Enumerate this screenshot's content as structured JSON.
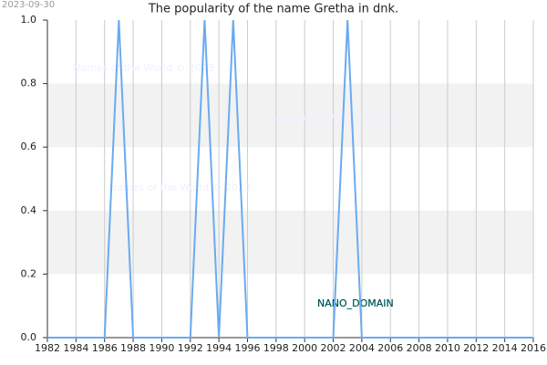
{
  "chart_data": {
    "type": "line",
    "title": "The popularity of the name Gretha in dnk.",
    "date_stamp": "2023-09-30",
    "watermarks": [
      "Names of the World © 2023",
      "Names of the World © 2023",
      "Names of the World © 2023"
    ],
    "domain_label": "NANO_DOMAIN",
    "x": [
      1982,
      1983,
      1984,
      1985,
      1986,
      1987,
      1988,
      1989,
      1990,
      1991,
      1992,
      1993,
      1994,
      1995,
      1996,
      1997,
      1998,
      1999,
      2000,
      2001,
      2002,
      2003,
      2004,
      2005,
      2006,
      2007,
      2008,
      2009,
      2010,
      2011,
      2012,
      2013,
      2014,
      2015,
      2016
    ],
    "series": [
      {
        "name": "Gretha",
        "color": "#6aaaf0",
        "values": [
          0,
          0,
          0,
          0,
          0,
          1,
          0,
          0,
          0,
          0,
          0,
          1,
          0,
          1,
          0,
          0,
          0,
          0,
          0,
          0,
          0,
          1,
          0,
          0,
          0,
          0,
          0,
          0,
          0,
          0,
          0,
          0,
          0,
          0,
          0
        ]
      }
    ],
    "xlim": [
      1982,
      2016
    ],
    "ylim": [
      0,
      1
    ],
    "xticks": [
      1982,
      1984,
      1986,
      1988,
      1990,
      1992,
      1994,
      1996,
      1998,
      2000,
      2002,
      2004,
      2006,
      2008,
      2010,
      2012,
      2014,
      2016
    ],
    "yticks": [
      {
        "value": 0,
        "label": "0.0"
      },
      {
        "value": 0.2,
        "label": "0.2"
      },
      {
        "value": 0.4,
        "label": "0.4"
      },
      {
        "value": 0.6,
        "label": "0.6"
      },
      {
        "value": 0.8,
        "label": "0.8"
      },
      {
        "value": 1,
        "label": "1.0"
      }
    ],
    "grid": true,
    "band_color": "#f2f2f2"
  }
}
